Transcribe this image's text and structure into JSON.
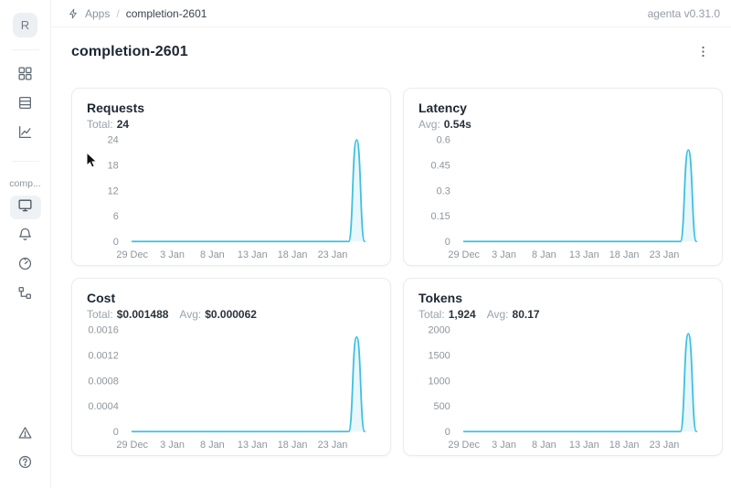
{
  "header": {
    "breadcrumb": {
      "icon": "bolt-icon",
      "apps": "Apps",
      "separator": "/",
      "current": "completion-2601"
    },
    "version": "agenta v0.31.0"
  },
  "sidebar": {
    "logo_letter": "R",
    "app_label": "comp...",
    "items": [
      {
        "icon": "grid-apps-icon",
        "active": false
      },
      {
        "icon": "table-icon",
        "active": false
      },
      {
        "icon": "line-chart-icon",
        "active": false
      },
      {
        "icon": "monitor-icon",
        "active": true
      },
      {
        "icon": "bell-icon",
        "active": false
      },
      {
        "icon": "gauge-icon",
        "active": false
      },
      {
        "icon": "tree-flow-icon",
        "active": false
      },
      {
        "icon": "alert-triangle-icon",
        "active": false
      },
      {
        "icon": "question-circle-icon",
        "active": false
      }
    ]
  },
  "page": {
    "title": "completion-2601"
  },
  "colors": {
    "line": "#3fc0de",
    "fill": "rgba(63,192,222,0.12)",
    "axis_text": "#8d959e"
  },
  "chart_data": [
    {
      "type": "line",
      "title": "Requests",
      "stats": [
        {
          "label": "Total:",
          "value": "24"
        }
      ],
      "x_tick_labels": [
        "29 Dec",
        "3 Jan",
        "8 Jan",
        "13 Jan",
        "18 Jan",
        "23 Jan"
      ],
      "x_tick_indices": [
        0,
        5,
        10,
        15,
        20,
        25
      ],
      "series": [
        {
          "name": "requests",
          "values": [
            0,
            0,
            0,
            0,
            0,
            0,
            0,
            0,
            0,
            0,
            0,
            0,
            0,
            0,
            0,
            0,
            0,
            0,
            0,
            0,
            0,
            0,
            0,
            0,
            0,
            0,
            0,
            0,
            24,
            0
          ]
        }
      ],
      "y_ticks": [
        {
          "v": 0,
          "label": "0"
        },
        {
          "v": 6,
          "label": "6"
        },
        {
          "v": 12,
          "label": "12"
        },
        {
          "v": 18,
          "label": "18"
        },
        {
          "v": 24,
          "label": "24"
        }
      ],
      "ylim": [
        0,
        24
      ],
      "grid": false,
      "legend": "none"
    },
    {
      "type": "line",
      "title": "Latency",
      "stats": [
        {
          "label": "Avg:",
          "value": "0.54s"
        }
      ],
      "x_tick_labels": [
        "29 Dec",
        "3 Jan",
        "8 Jan",
        "13 Jan",
        "18 Jan",
        "23 Jan"
      ],
      "x_tick_indices": [
        0,
        5,
        10,
        15,
        20,
        25
      ],
      "series": [
        {
          "name": "latency_s",
          "values": [
            0,
            0,
            0,
            0,
            0,
            0,
            0,
            0,
            0,
            0,
            0,
            0,
            0,
            0,
            0,
            0,
            0,
            0,
            0,
            0,
            0,
            0,
            0,
            0,
            0,
            0,
            0,
            0,
            0.54,
            0
          ]
        }
      ],
      "y_ticks": [
        {
          "v": 0,
          "label": "0"
        },
        {
          "v": 0.15,
          "label": "0.15"
        },
        {
          "v": 0.3,
          "label": "0.3"
        },
        {
          "v": 0.45,
          "label": "0.45"
        },
        {
          "v": 0.6,
          "label": "0.6"
        }
      ],
      "ylim": [
        0,
        0.6
      ],
      "grid": false,
      "legend": "none"
    },
    {
      "type": "line",
      "title": "Cost",
      "stats": [
        {
          "label": "Total:",
          "value": "$0.001488"
        },
        {
          "label": "Avg:",
          "value": "$0.000062"
        }
      ],
      "x_tick_labels": [
        "29 Dec",
        "3 Jan",
        "8 Jan",
        "13 Jan",
        "18 Jan",
        "23 Jan"
      ],
      "x_tick_indices": [
        0,
        5,
        10,
        15,
        20,
        25
      ],
      "series": [
        {
          "name": "cost_usd",
          "values": [
            0,
            0,
            0,
            0,
            0,
            0,
            0,
            0,
            0,
            0,
            0,
            0,
            0,
            0,
            0,
            0,
            0,
            0,
            0,
            0,
            0,
            0,
            0,
            0,
            0,
            0,
            0,
            0,
            0.001488,
            0
          ]
        }
      ],
      "y_ticks": [
        {
          "v": 0,
          "label": "0"
        },
        {
          "v": 0.0004,
          "label": "0.0004"
        },
        {
          "v": 0.0008,
          "label": "0.0008"
        },
        {
          "v": 0.0012,
          "label": "0.0012"
        },
        {
          "v": 0.0016,
          "label": "0.0016"
        }
      ],
      "ylim": [
        0,
        0.0016
      ],
      "grid": false,
      "legend": "none"
    },
    {
      "type": "line",
      "title": "Tokens",
      "stats": [
        {
          "label": "Total:",
          "value": "1,924"
        },
        {
          "label": "Avg:",
          "value": "80.17"
        }
      ],
      "x_tick_labels": [
        "29 Dec",
        "3 Jan",
        "8 Jan",
        "13 Jan",
        "18 Jan",
        "23 Jan"
      ],
      "x_tick_indices": [
        0,
        5,
        10,
        15,
        20,
        25
      ],
      "series": [
        {
          "name": "tokens",
          "values": [
            0,
            0,
            0,
            0,
            0,
            0,
            0,
            0,
            0,
            0,
            0,
            0,
            0,
            0,
            0,
            0,
            0,
            0,
            0,
            0,
            0,
            0,
            0,
            0,
            0,
            0,
            0,
            0,
            1924,
            0
          ]
        }
      ],
      "y_ticks": [
        {
          "v": 0,
          "label": "0"
        },
        {
          "v": 500,
          "label": "500"
        },
        {
          "v": 1000,
          "label": "1000"
        },
        {
          "v": 1500,
          "label": "1500"
        },
        {
          "v": 2000,
          "label": "2000"
        }
      ],
      "ylim": [
        0,
        2000
      ],
      "grid": false,
      "legend": "none"
    }
  ]
}
